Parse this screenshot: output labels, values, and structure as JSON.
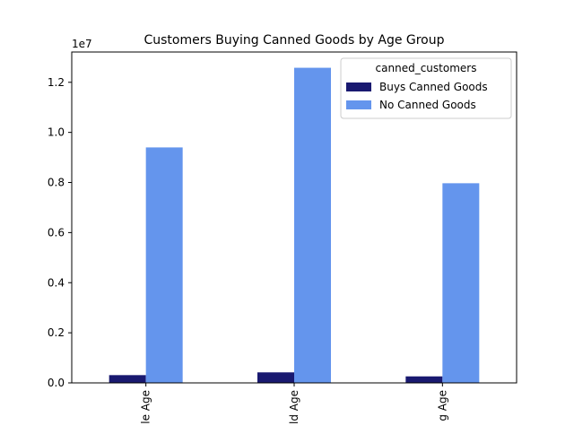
{
  "chart_data": {
    "type": "bar",
    "title": "Customers Buying Canned Goods by Age Group",
    "xlabel": "",
    "ylabel": "",
    "y_offset_label": "1e7",
    "categories": [
      "le Age",
      "ld Age",
      "g Age"
    ],
    "series": [
      {
        "name": "Buys Canned Goods",
        "color": "#191970",
        "values": [
          310000,
          420000,
          260000
        ]
      },
      {
        "name": "No Canned Goods",
        "color": "#6495ED",
        "values": [
          9400000,
          12580000,
          7970000
        ]
      }
    ],
    "yticks": [
      "0.0",
      "0.2",
      "0.4",
      "0.6",
      "0.8",
      "1.0",
      "1.2"
    ],
    "ytick_values": [
      0,
      2000000,
      4000000,
      6000000,
      8000000,
      10000000,
      12000000
    ],
    "ylim": [
      0,
      13209000
    ],
    "grid": false,
    "legend": {
      "title": "canned_customers",
      "placement": "top-right"
    }
  }
}
